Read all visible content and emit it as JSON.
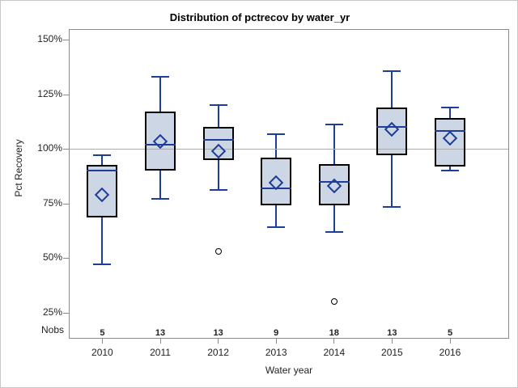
{
  "chart_data": {
    "type": "boxplot",
    "title": "Distribution of pctrecov by water_yr",
    "xlabel": "Water year",
    "ylabel": "Pct Recovery",
    "nobs_label": "Nobs",
    "categories": [
      "2010",
      "2011",
      "2012",
      "2013",
      "2014",
      "2015",
      "2016"
    ],
    "yticks": [
      {
        "label": "150%",
        "value": 150
      },
      {
        "label": "125%",
        "value": 125
      },
      {
        "label": "100%",
        "value": 100
      },
      {
        "label": "75%",
        "value": 75
      },
      {
        "label": "50%",
        "value": 50
      },
      {
        "label": "25%",
        "value": 25
      }
    ],
    "ylim": [
      13,
      156
    ],
    "reference_line": 100,
    "legend": "none",
    "grid": false,
    "series": [
      {
        "year": "2010",
        "nobs": 5,
        "whisker_low": 47,
        "q1": 68.5,
        "median": 90,
        "mean": 79,
        "q3": 92.5,
        "whisker_high": 97,
        "outliers": []
      },
      {
        "year": "2011",
        "nobs": 13,
        "whisker_low": 77,
        "q1": 90,
        "median": 102,
        "mean": 103.5,
        "q3": 117,
        "whisker_high": 133,
        "outliers": []
      },
      {
        "year": "2012",
        "nobs": 13,
        "whisker_low": 81,
        "q1": 95,
        "median": 104,
        "mean": 99,
        "q3": 110,
        "whisker_high": 120,
        "outliers": [
          53
        ]
      },
      {
        "year": "2013",
        "nobs": 9,
        "whisker_low": 64,
        "q1": 74,
        "median": 82,
        "mean": 84.5,
        "q3": 96,
        "whisker_high": 106.5,
        "outliers": []
      },
      {
        "year": "2014",
        "nobs": 18,
        "whisker_low": 62,
        "q1": 74,
        "median": 85,
        "mean": 83,
        "q3": 93,
        "whisker_high": 111,
        "outliers": [
          30
        ]
      },
      {
        "year": "2015",
        "nobs": 13,
        "whisker_low": 73.5,
        "q1": 97,
        "median": 110,
        "mean": 109,
        "q3": 119,
        "whisker_high": 135.5,
        "outliers": []
      },
      {
        "year": "2016",
        "nobs": 5,
        "whisker_low": 90,
        "q1": 92,
        "median": 108,
        "mean": 105,
        "q3": 114,
        "whisker_high": 119,
        "outliers": []
      }
    ],
    "colors": {
      "box_fill": "#cdd6e4",
      "box_border": "#000000",
      "line": "#1c3e99",
      "reference_line": "#ababab",
      "wall_border": "#8a8a8a",
      "text": "#222222"
    }
  }
}
